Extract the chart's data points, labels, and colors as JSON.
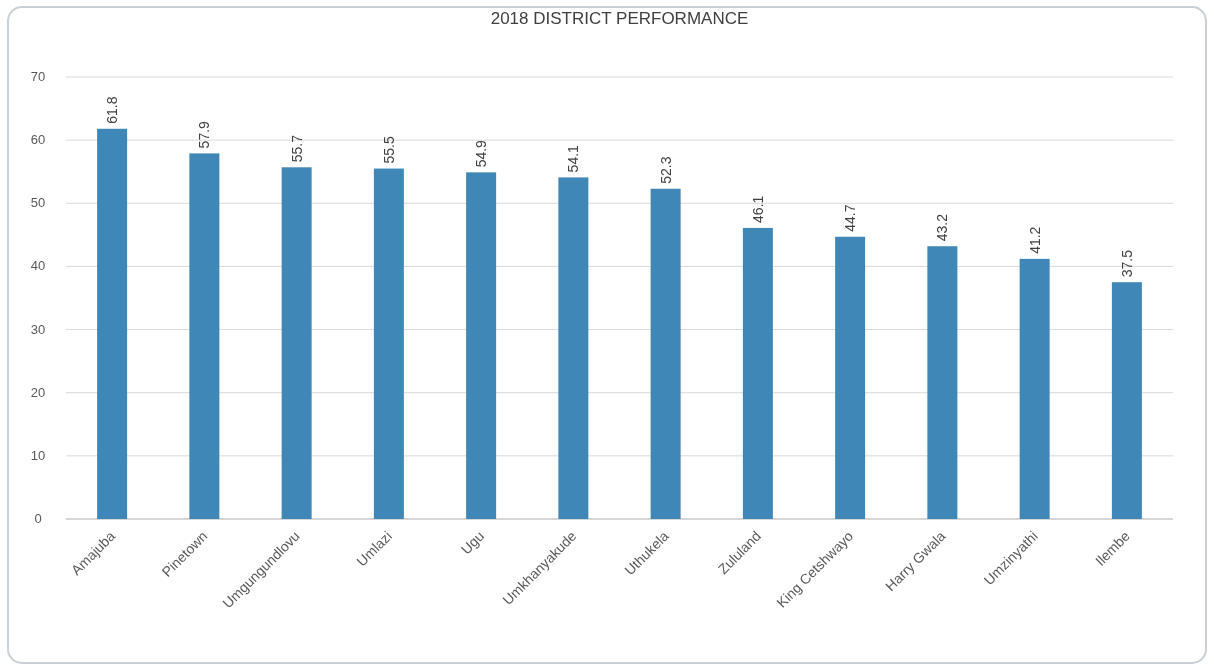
{
  "chart_data": {
    "type": "bar",
    "title": "2018 DISTRICT PERFORMANCE",
    "categories": [
      "Amajuba",
      "Pinetown",
      "Umgungundlovu",
      "Umlazi",
      "Ugu",
      "Umkhanyakude",
      "Uthukela",
      "Zululand",
      "King Cetshwayo",
      "Harry Gwala",
      "Umzinyathi",
      "Ilembe"
    ],
    "values": [
      61.8,
      57.9,
      55.7,
      55.5,
      54.9,
      54.1,
      52.3,
      46.1,
      44.7,
      43.2,
      41.2,
      37.5
    ],
    "color": "#3f87b6",
    "ylim": [
      0,
      70
    ],
    "yticks": [
      0,
      10,
      20,
      30,
      40,
      50,
      60,
      70
    ],
    "grid": "y",
    "data_labels": true
  }
}
